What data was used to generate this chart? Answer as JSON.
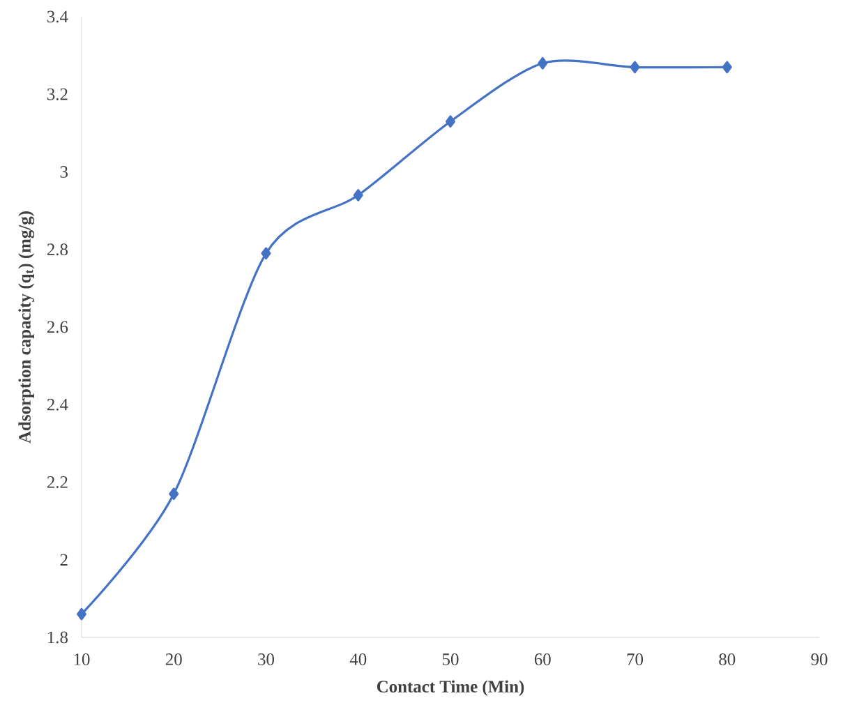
{
  "chart_data": {
    "type": "line",
    "xlabel": "Contact Time (Min)",
    "ylabel": "Adsorption capacity (q$_{t}$) (mg/g)",
    "x": [
      10,
      20,
      30,
      40,
      50,
      60,
      70,
      80
    ],
    "series": [
      {
        "color": "#4472c4",
        "values": [
          1.86,
          2.17,
          2.79,
          2.94,
          3.13,
          3.28,
          3.27,
          3.27
        ]
      }
    ],
    "xlim": [
      10,
      90
    ],
    "ylim": [
      1.8,
      3.4
    ],
    "xticks": [
      10,
      20,
      30,
      40,
      50,
      60,
      70,
      80,
      90
    ],
    "yticks": [
      1.8,
      2,
      2.2,
      2.4,
      2.6,
      2.8,
      3,
      3.2,
      3.4
    ],
    "marker": "diamond",
    "line_style": "solid"
  }
}
